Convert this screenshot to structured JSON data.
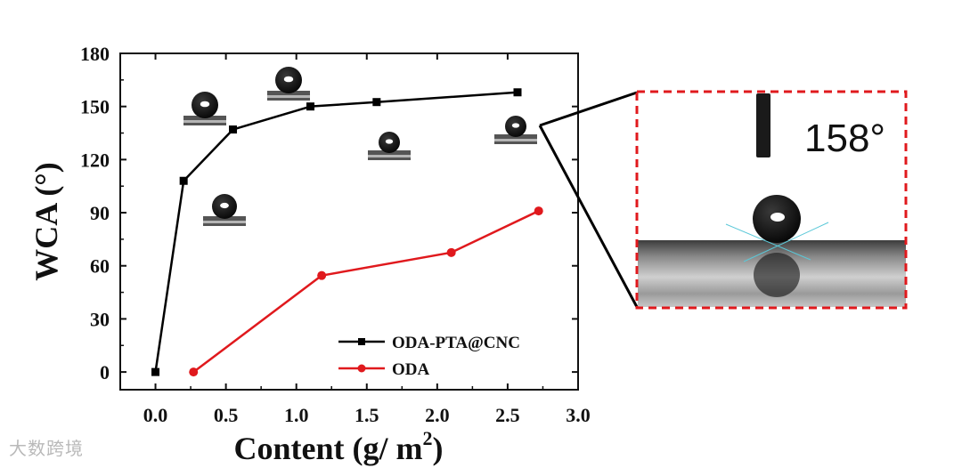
{
  "chart_data": {
    "type": "line",
    "xlabel": "Content (g/ m",
    "xlabel_sup": "2",
    "xlabel_close": ")",
    "ylabel": "WCA (°)",
    "xlim": [
      -0.25,
      3.0
    ],
    "ylim": [
      -10,
      180
    ],
    "xticks": [
      0.0,
      0.5,
      1.0,
      1.5,
      2.0,
      2.5,
      3.0
    ],
    "xtick_labels": [
      "0.0",
      "0.5",
      "1.0",
      "1.5",
      "2.0",
      "2.5",
      "3.0"
    ],
    "yticks": [
      0,
      30,
      60,
      90,
      120,
      150,
      180
    ],
    "ytick_labels": [
      "0",
      "30",
      "60",
      "90",
      "120",
      "150",
      "180"
    ],
    "grid": false,
    "legend_position": "bottom-right",
    "series": [
      {
        "name": "ODA-PTA@CNC",
        "color": "#000000",
        "marker": "square",
        "x": [
          0.0,
          0.2,
          0.55,
          1.1,
          1.57,
          2.57
        ],
        "y": [
          0,
          108,
          137,
          150,
          152.5,
          158
        ]
      },
      {
        "name": "ODA",
        "color": "#e0191d",
        "marker": "circle",
        "x": [
          0.27,
          1.18,
          2.1,
          2.72
        ],
        "y": [
          0,
          54.5,
          67.5,
          91
        ]
      }
    ],
    "annotations": [
      {
        "text": "158°",
        "target": "inset"
      }
    ],
    "inset_border_color": "#e0191d"
  },
  "watermark": "大数跨境"
}
